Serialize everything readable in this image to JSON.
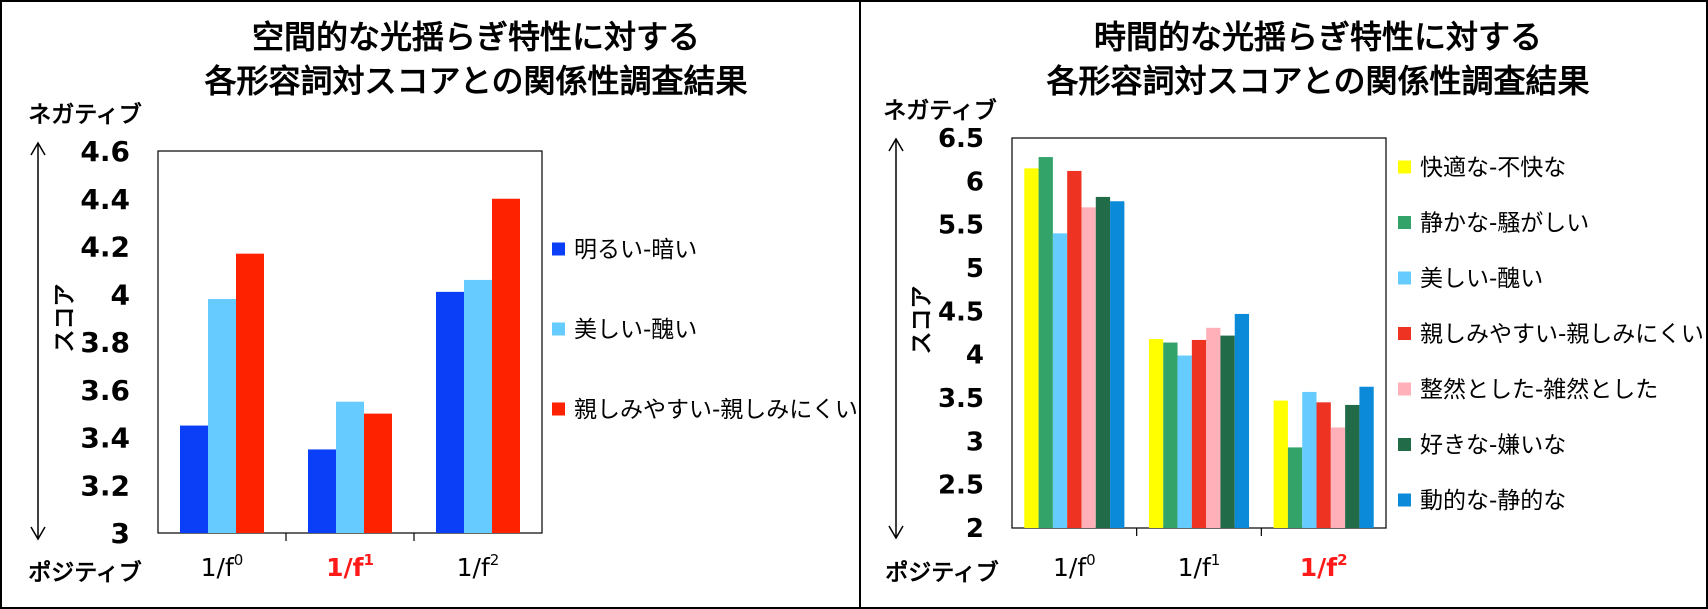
{
  "chart_data": [
    {
      "type": "bar",
      "title_lines": [
        "空間的な光揺らぎ特性に対する",
        "各形容詞対スコアとの関係性調査結果"
      ],
      "ylabel": "スコア",
      "ylabel_top": "ネガティブ",
      "ylabel_bottom": "ポジティブ",
      "ylim": [
        3,
        4.6
      ],
      "yticks": [
        "3",
        "3.2",
        "3.4",
        "3.6",
        "3.8",
        "4",
        "4.2",
        "4.4",
        "4.6"
      ],
      "categories": [
        {
          "base": "1/f",
          "exp": "0",
          "highlight": false
        },
        {
          "base": "1/f",
          "exp": "1",
          "highlight": true
        },
        {
          "base": "1/f",
          "exp": "2",
          "highlight": false
        }
      ],
      "series": [
        {
          "name": "明るい-暗い",
          "color": "#0b3ff7",
          "values": [
            3.45,
            3.35,
            4.01
          ]
        },
        {
          "name": "美しい-醜い",
          "color": "#66ccff",
          "values": [
            3.98,
            3.55,
            4.06
          ]
        },
        {
          "name": "親しみやすい-親しみにくい",
          "color": "#ff2200",
          "values": [
            4.17,
            3.5,
            4.4
          ]
        }
      ],
      "legend_position": "right",
      "grid": false
    },
    {
      "type": "bar",
      "title_lines": [
        "時間的な光揺らぎ特性に対する",
        "各形容詞対スコアとの関係性調査結果"
      ],
      "ylabel": "スコア",
      "ylabel_top": "ネガティブ",
      "ylabel_bottom": "ポジティブ",
      "ylim": [
        2,
        6.5
      ],
      "yticks": [
        "2",
        "2.5",
        "3",
        "3.5",
        "4",
        "4.5",
        "5",
        "5.5",
        "6",
        "6.5"
      ],
      "categories": [
        {
          "base": "1/f",
          "exp": "0",
          "highlight": false
        },
        {
          "base": "1/f",
          "exp": "1",
          "highlight": false
        },
        {
          "base": "1/f",
          "exp": "2",
          "highlight": true
        }
      ],
      "series": [
        {
          "name": "快適な-不快な",
          "color": "#ffff00",
          "values": [
            6.15,
            4.18,
            3.47
          ]
        },
        {
          "name": "静かな-騒がしい",
          "color": "#33a36a",
          "values": [
            6.28,
            4.14,
            2.93
          ]
        },
        {
          "name": "美しい-醜い",
          "color": "#66ccff",
          "values": [
            5.4,
            3.99,
            3.57
          ]
        },
        {
          "name": "親しみやすい-親しみにくい",
          "color": "#ee3322",
          "values": [
            6.12,
            4.17,
            3.45
          ]
        },
        {
          "name": "整然とした-雑然とした",
          "color": "#ffb0b8",
          "values": [
            5.7,
            4.31,
            3.16
          ]
        },
        {
          "name": "好きな-嫌いな",
          "color": "#216b48",
          "values": [
            5.82,
            4.22,
            3.42
          ]
        },
        {
          "name": "動的な-静的な",
          "color": "#0a8ad8",
          "values": [
            5.77,
            4.47,
            3.63
          ]
        }
      ],
      "legend_position": "right",
      "grid": false
    }
  ]
}
